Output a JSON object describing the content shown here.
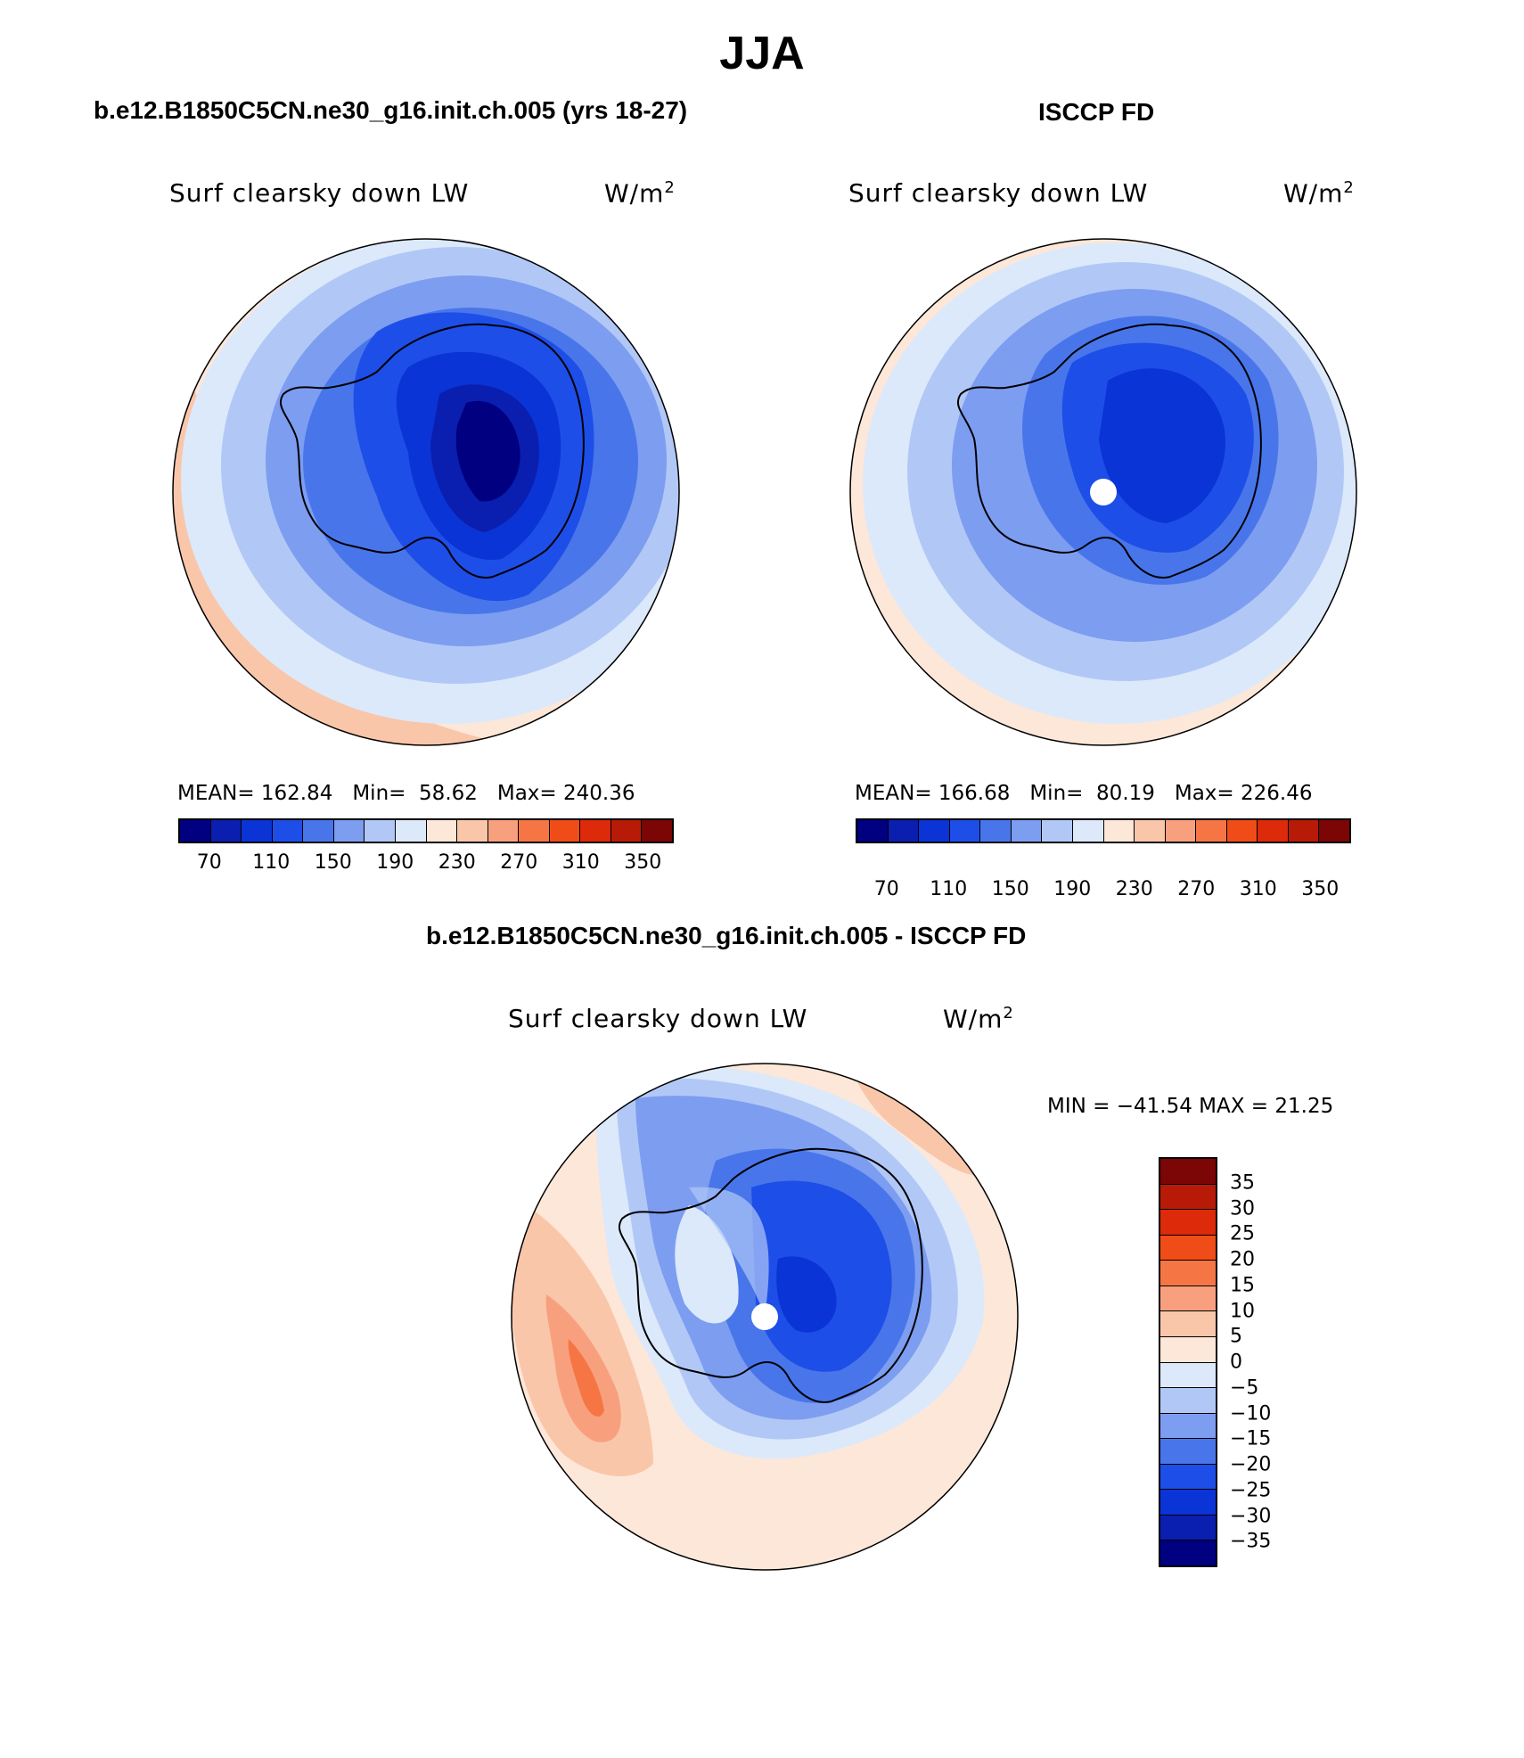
{
  "title": "JJA",
  "panels": [
    {
      "id": "model",
      "header": "b.e12.B1850C5CN.ne30_g16.init.ch.005 (yrs 18-27)",
      "variable": "Surf clearsky down LW",
      "units": "W/m",
      "units_sup": "2",
      "stats": {
        "mean_label": "MEAN=",
        "mean": "162.84",
        "min_label": "Min=",
        "min": "58.62",
        "max_label": "Max=",
        "max": "240.36"
      }
    },
    {
      "id": "obs",
      "header": "ISCCP FD",
      "variable": "Surf clearsky down LW",
      "units": "W/m",
      "units_sup": "2",
      "stats": {
        "mean_label": "MEAN=",
        "mean": "166.68",
        "min_label": "Min=",
        "min": "80.19",
        "max_label": "Max=",
        "max": "226.46"
      }
    },
    {
      "id": "diff",
      "header": "b.e12.B1850C5CN.ne30_g16.init.ch.005 - ISCCP FD",
      "variable": "Surf clearsky down LW",
      "units": "W/m",
      "units_sup": "2",
      "stats_text": "MIN = −41.54  MAX =   21.25"
    }
  ],
  "colorbar_main": {
    "colors": [
      "#000080",
      "#0a1fb0",
      "#0a34d6",
      "#1e4ee8",
      "#4876ea",
      "#7d9df0",
      "#b1c8f7",
      "#dce9fb",
      "#fde7d8",
      "#fac6aa",
      "#f8a07e",
      "#f57644",
      "#f04c18",
      "#dc2a0a",
      "#b81a08",
      "#7c0505"
    ],
    "tick_labels": [
      "70",
      "110",
      "150",
      "190",
      "230",
      "270",
      "310",
      "350"
    ]
  },
  "colorbar_diff": {
    "colors": [
      "#7c0505",
      "#b81a08",
      "#dc2a0a",
      "#f04c18",
      "#f57644",
      "#f8a07e",
      "#fac6aa",
      "#fde7d8",
      "#dce9fb",
      "#b1c8f7",
      "#7d9df0",
      "#4876ea",
      "#1e4ee8",
      "#0a34d6",
      "#0a1fb0",
      "#000080"
    ],
    "labels": [
      "35",
      "30",
      "25",
      "20",
      "15",
      "10",
      "5",
      "0",
      "−5",
      "−10",
      "−15",
      "−20",
      "−25",
      "−30",
      "−35"
    ]
  }
}
